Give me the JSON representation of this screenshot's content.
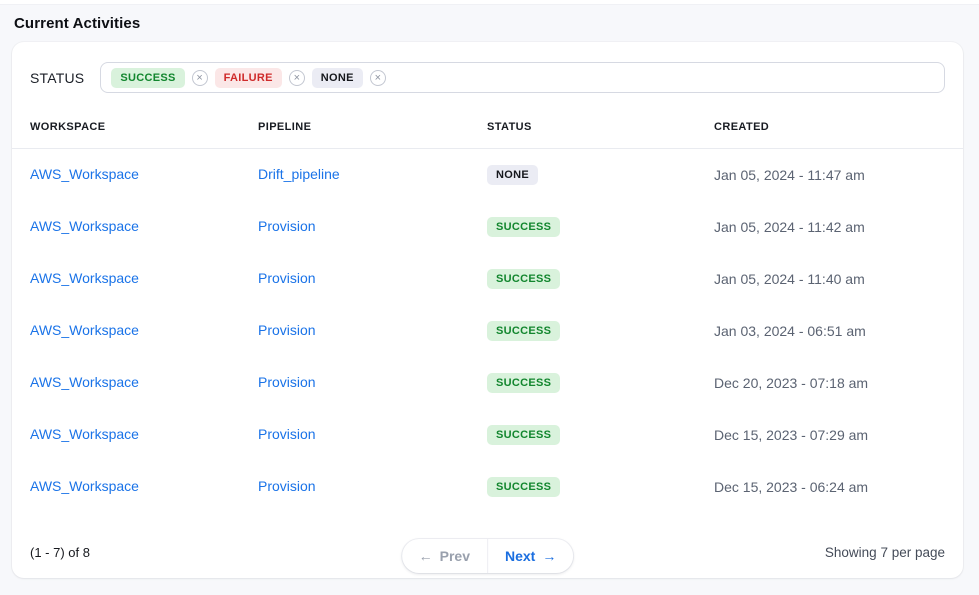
{
  "page": {
    "title": "Current Activities"
  },
  "filter": {
    "label": "STATUS",
    "remove_icon": "×",
    "tags": [
      {
        "label": "SUCCESS",
        "type": "success"
      },
      {
        "label": "FAILURE",
        "type": "failure"
      },
      {
        "label": "NONE",
        "type": "none"
      }
    ]
  },
  "table": {
    "columns": [
      "WORKSPACE",
      "PIPELINE",
      "STATUS",
      "CREATED"
    ],
    "rows": [
      {
        "workspace": "AWS_Workspace",
        "pipeline": "Drift_pipeline",
        "status": "NONE",
        "status_type": "none",
        "created": "Jan 05, 2024 - 11:47 am"
      },
      {
        "workspace": "AWS_Workspace",
        "pipeline": "Provision",
        "status": "SUCCESS",
        "status_type": "success",
        "created": "Jan 05, 2024 - 11:42 am"
      },
      {
        "workspace": "AWS_Workspace",
        "pipeline": "Provision",
        "status": "SUCCESS",
        "status_type": "success",
        "created": "Jan 05, 2024 - 11:40 am"
      },
      {
        "workspace": "AWS_Workspace",
        "pipeline": "Provision",
        "status": "SUCCESS",
        "status_type": "success",
        "created": "Jan 03, 2024 - 06:51 am"
      },
      {
        "workspace": "AWS_Workspace",
        "pipeline": "Provision",
        "status": "SUCCESS",
        "status_type": "success",
        "created": "Dec 20, 2023 - 07:18 am"
      },
      {
        "workspace": "AWS_Workspace",
        "pipeline": "Provision",
        "status": "SUCCESS",
        "status_type": "success",
        "created": "Dec 15, 2023 - 07:29 am"
      },
      {
        "workspace": "AWS_Workspace",
        "pipeline": "Provision",
        "status": "SUCCESS",
        "status_type": "success",
        "created": "Dec 15, 2023 - 06:24 am"
      }
    ]
  },
  "pagination": {
    "range_text": "(1 - 7) of 8",
    "prev_arrow": "←",
    "prev_label": "Prev",
    "next_label": "Next",
    "next_arrow": "→",
    "per_page_text": "Showing 7 per page"
  },
  "colors": {
    "link_blue": "#1a73e8",
    "success_bg": "#d9f2dc",
    "success_text": "#12862e",
    "failure_bg": "#fbe7e7",
    "failure_text": "#cf2b2b",
    "none_bg": "#ebecf4",
    "none_text": "#16181d",
    "page_bg": "#f7f8fb",
    "card_bg": "#ffffff"
  }
}
